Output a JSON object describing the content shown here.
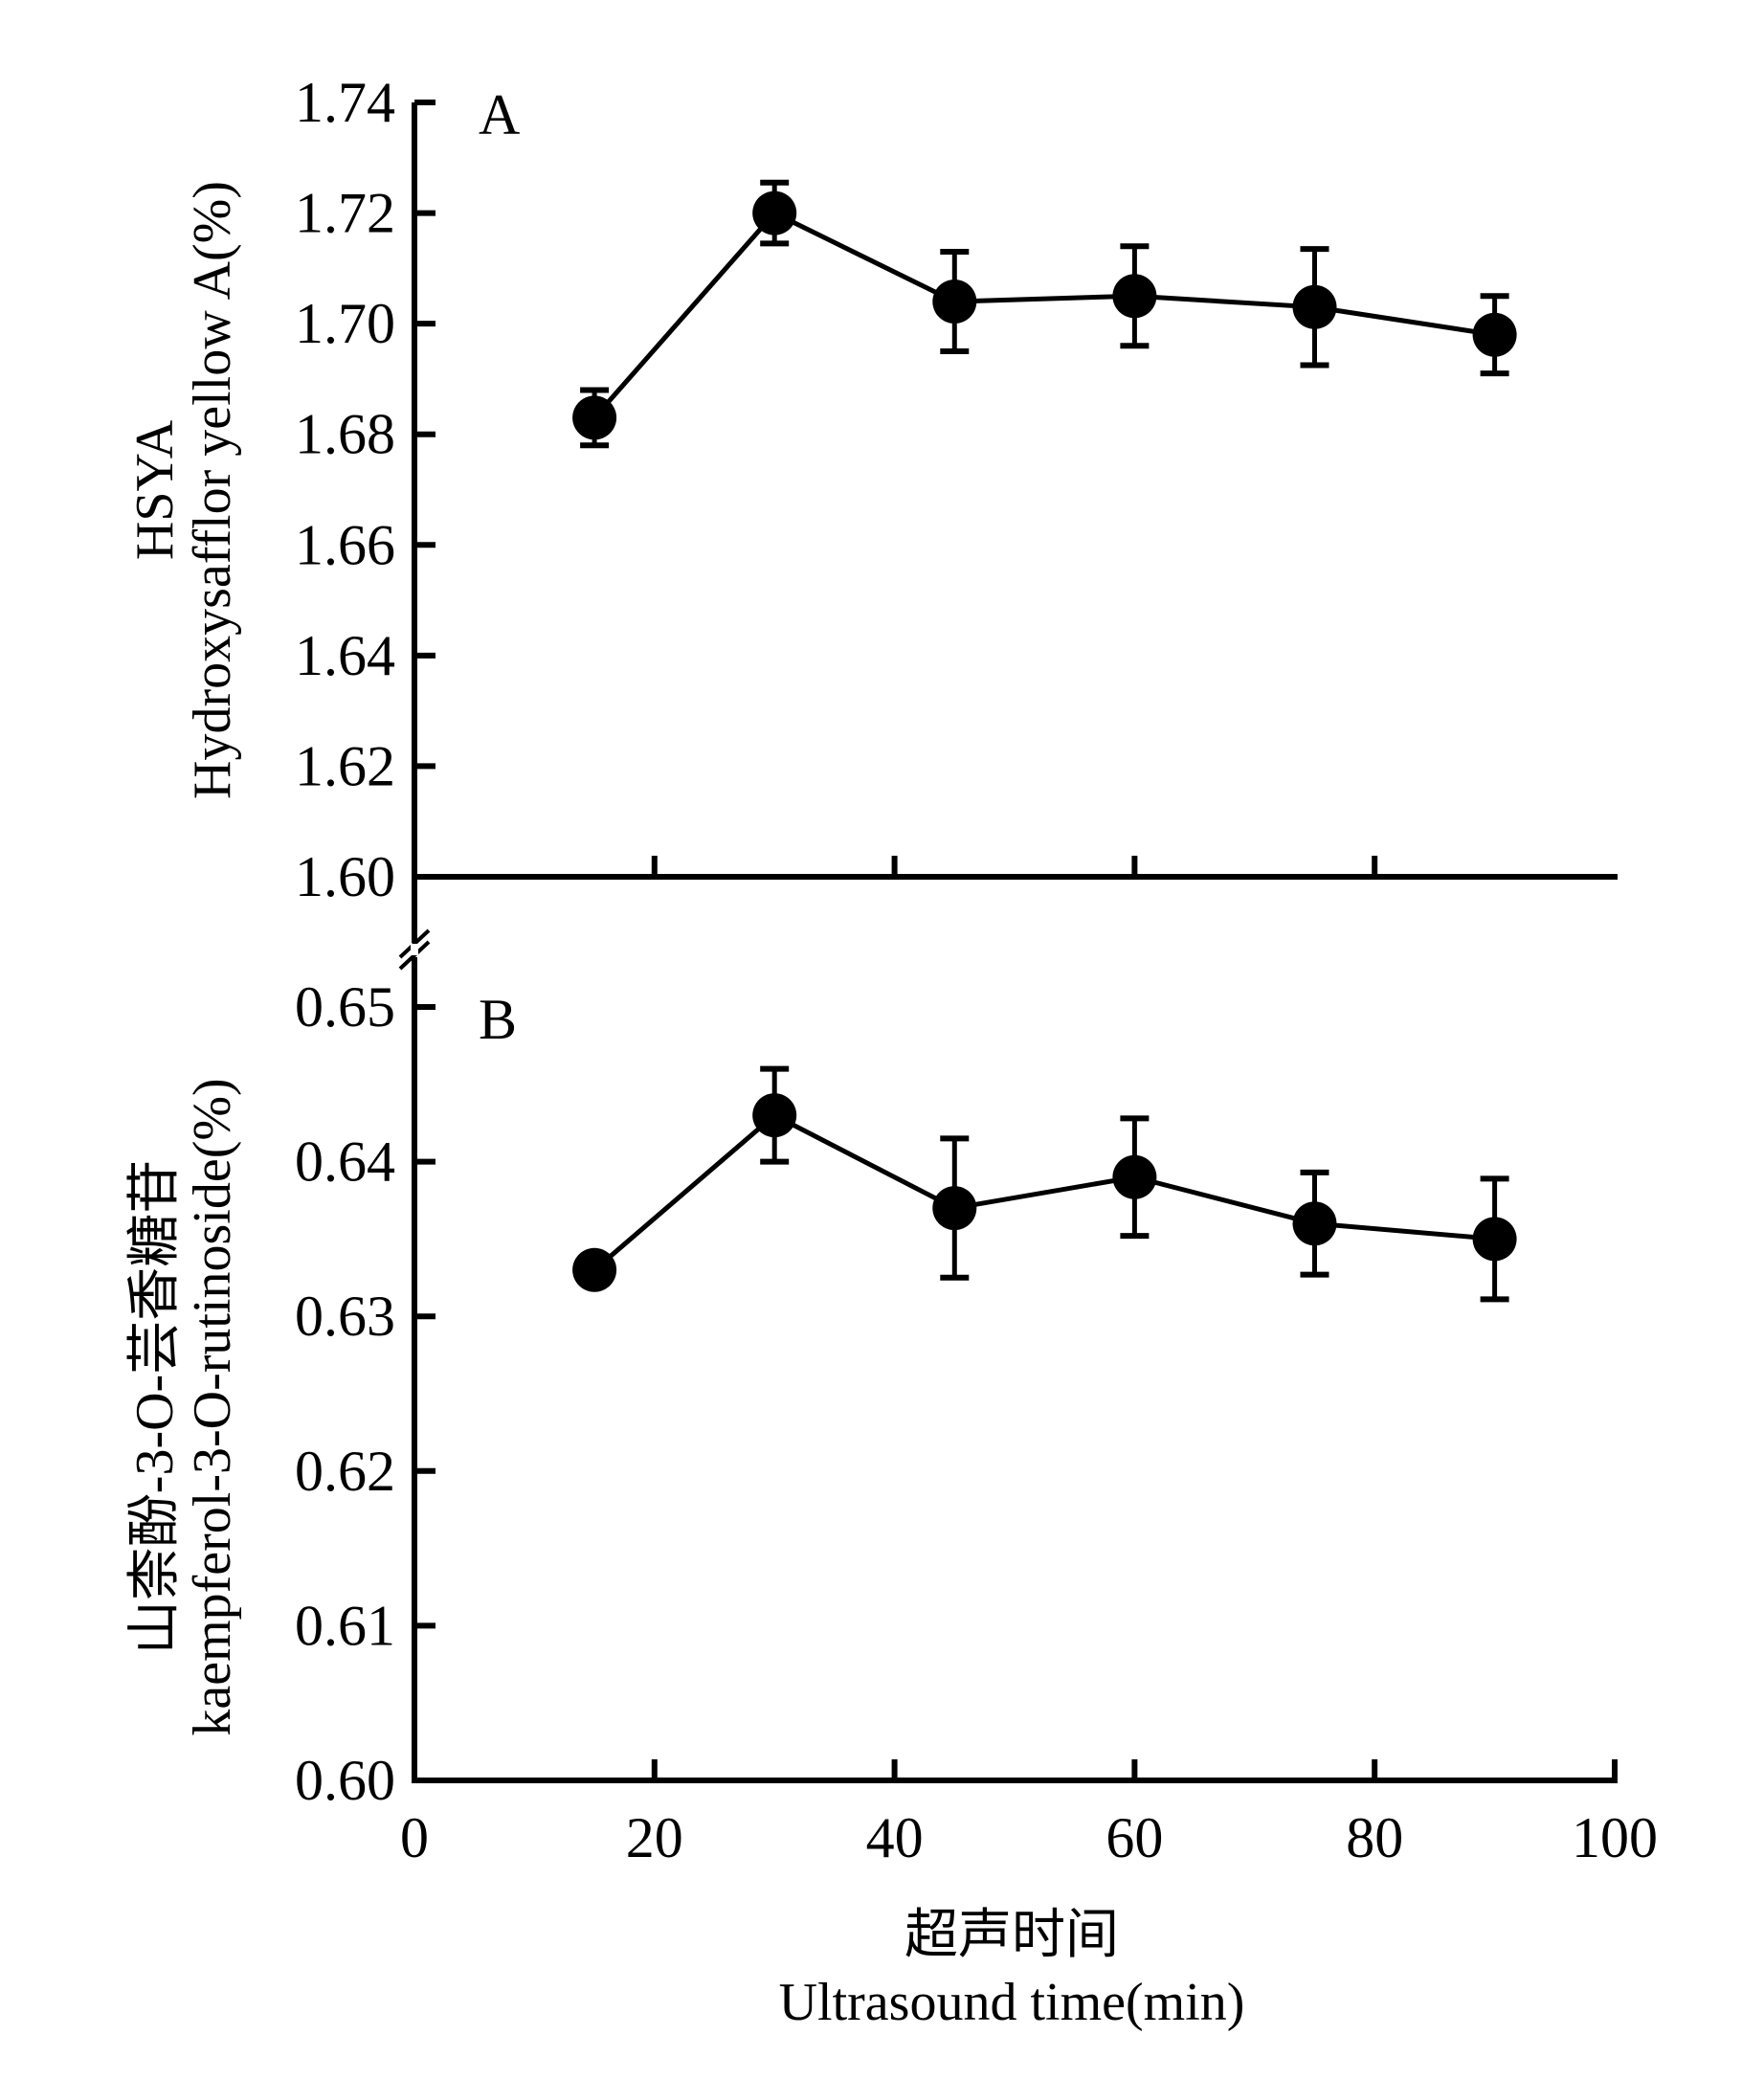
{
  "chart_data": [
    {
      "type": "line",
      "panel_label": "A",
      "ylabel_lines": [
        "HSYA",
        "Hydroxysafflor yellow A(%)"
      ],
      "xlabel": "",
      "ylim": [
        1.6,
        1.74
      ],
      "yticks": [
        "1.60",
        "1.62",
        "1.64",
        "1.66",
        "1.68",
        "1.70",
        "1.72",
        "1.74"
      ],
      "ytick_values": [
        1.6,
        1.62,
        1.64,
        1.66,
        1.68,
        1.7,
        1.72,
        1.74
      ],
      "xlim": [
        0,
        100
      ],
      "xtick_values": [
        20,
        40,
        60,
        80
      ],
      "grid": false,
      "series": [
        {
          "name": "HSYA",
          "x": [
            15,
            30,
            45,
            60,
            75,
            90
          ],
          "y": [
            1.683,
            1.72,
            1.704,
            1.705,
            1.703,
            1.698
          ],
          "error": [
            0.005,
            0.0055,
            0.009,
            0.009,
            0.0105,
            0.007
          ],
          "color": "#000000",
          "marker": "filled-circle"
        }
      ]
    },
    {
      "type": "line",
      "panel_label": "B",
      "ylabel_lines": [
        "山柰酚-3-O-芸香糖苷",
        "kaempferol-3-O-rutinoside(%)"
      ],
      "xlabel_lines": [
        "超声时间",
        "Ultrasound time(min)"
      ],
      "ylim": [
        0.6,
        0.65
      ],
      "yticks": [
        "0.60",
        "0.61",
        "0.62",
        "0.63",
        "0.64",
        "0.65"
      ],
      "ytick_values": [
        0.6,
        0.61,
        0.62,
        0.63,
        0.64,
        0.65
      ],
      "xlim": [
        0,
        100
      ],
      "xticks": [
        "0",
        "20",
        "40",
        "60",
        "80",
        "100"
      ],
      "xtick_values": [
        0,
        20,
        40,
        60,
        80,
        100
      ],
      "grid": false,
      "series": [
        {
          "name": "kaempferol-3-O-rutinoside",
          "x": [
            15,
            30,
            45,
            60,
            75,
            90
          ],
          "y": [
            0.633,
            0.643,
            0.637,
            0.639,
            0.636,
            0.635
          ],
          "error": [
            0,
            0.003,
            0.0045,
            0.0038,
            0.0033,
            0.0039
          ],
          "color": "#000000",
          "marker": "filled-circle"
        }
      ]
    }
  ]
}
